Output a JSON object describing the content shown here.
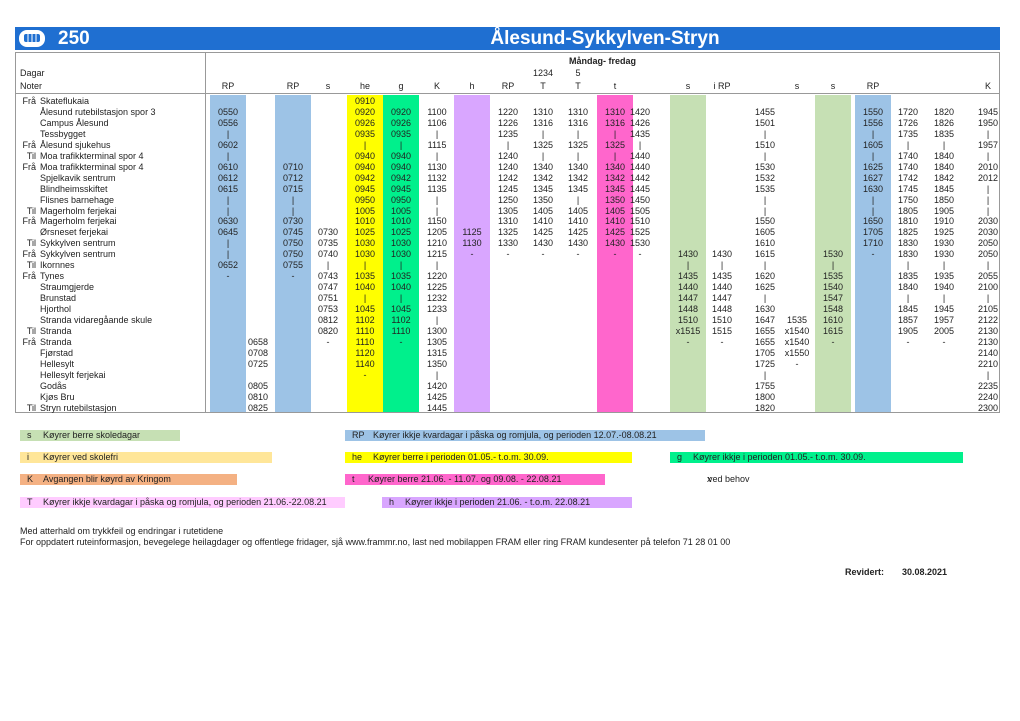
{
  "header": {
    "route": "250",
    "title": "Ålesund-Sykkylven-Stryn",
    "days": "Måndag- fredag"
  },
  "table": {
    "days_label": "Dagar",
    "days": [
      null,
      null,
      null,
      null,
      null,
      null,
      null,
      null,
      null,
      "1234",
      "5",
      null,
      null,
      null,
      null,
      null,
      null,
      null,
      null,
      null,
      null,
      null
    ],
    "notes_label": "Noter",
    "notes": [
      "RP",
      null,
      "RP",
      "s",
      "he",
      "g",
      "K",
      "h",
      "RP",
      "T",
      "T",
      "t",
      null,
      "s",
      "i RP",
      null,
      "s",
      "s",
      "RP",
      null,
      null,
      "K"
    ],
    "column_colors": [
      "#9dc3e6",
      null,
      "#9dc3e6",
      null,
      "#ffff00",
      "#00f08c",
      null,
      "#d9a6ff",
      null,
      null,
      null,
      "#ff66cc",
      null,
      "#c6e0b4",
      null,
      null,
      null,
      "#c6e0b4",
      "#9dc3e6",
      null,
      null,
      null
    ],
    "rows": [
      {
        "dir": "Frå",
        "stop": "Skateflukaia",
        "times": [
          null,
          null,
          null,
          null,
          "0910",
          null,
          null,
          null,
          null,
          null,
          null,
          null,
          null,
          null,
          null,
          null,
          null,
          null,
          null,
          null,
          null,
          null
        ]
      },
      {
        "stop": "Ålesund rutebilstasjon spor 3",
        "times": [
          "0550",
          null,
          null,
          null,
          "0920",
          "0920",
          "1100",
          null,
          "1220",
          "1310",
          "1310",
          "1310",
          "1420",
          null,
          null,
          "1455",
          null,
          null,
          "1550",
          "1720",
          "1820",
          "1945"
        ]
      },
      {
        "stop": "Campus Ålesund",
        "times": [
          "0556",
          null,
          null,
          null,
          "0926",
          "0926",
          "1106",
          null,
          "1226",
          "1316",
          "1316",
          "1316",
          "1426",
          null,
          null,
          "1501",
          null,
          null,
          "1556",
          "1726",
          "1826",
          "1950"
        ]
      },
      {
        "stop": "Tessbygget",
        "times": [
          "|",
          null,
          null,
          null,
          "0935",
          "0935",
          "|",
          null,
          "1235",
          "|",
          "|",
          "|",
          "1435",
          null,
          null,
          "|",
          null,
          null,
          "|",
          "1735",
          "1835",
          "|"
        ]
      },
      {
        "dir": "Frå",
        "stop": "Ålesund sjukehus",
        "times": [
          "0602",
          null,
          null,
          null,
          "|",
          "|",
          "1115",
          null,
          "|",
          "1325",
          "1325",
          "1325",
          "|",
          null,
          null,
          "1510",
          null,
          null,
          "1605",
          "|",
          "|",
          "1957"
        ]
      },
      {
        "dir": "Til",
        "stop": "Moa trafikkterminal spor 4",
        "times": [
          "|",
          null,
          null,
          null,
          "0940",
          "0940",
          "|",
          null,
          "1240",
          "|",
          "|",
          "|",
          "1440",
          null,
          null,
          "|",
          null,
          null,
          "|",
          "1740",
          "1840",
          "|"
        ]
      },
      {
        "dir": "Frå",
        "stop": "Moa trafikkterminal spor 4",
        "times": [
          "0610",
          null,
          "0710",
          null,
          "0940",
          "0940",
          "1130",
          null,
          "1240",
          "1340",
          "1340",
          "1340",
          "1440",
          null,
          null,
          "1530",
          null,
          null,
          "1625",
          "1740",
          "1840",
          "2010"
        ]
      },
      {
        "stop": "Spjelkavik sentrum",
        "times": [
          "0612",
          null,
          "0712",
          null,
          "0942",
          "0942",
          "1132",
          null,
          "1242",
          "1342",
          "1342",
          "1342",
          "1442",
          null,
          null,
          "1532",
          null,
          null,
          "1627",
          "1742",
          "1842",
          "2012"
        ]
      },
      {
        "stop": "Blindheimsskiftet",
        "times": [
          "0615",
          null,
          "0715",
          null,
          "0945",
          "0945",
          "1135",
          null,
          "1245",
          "1345",
          "1345",
          "1345",
          "1445",
          null,
          null,
          "1535",
          null,
          null,
          "1630",
          "1745",
          "1845",
          "|"
        ]
      },
      {
        "stop": "Flisnes barnehage",
        "times": [
          "|",
          null,
          "|",
          null,
          "0950",
          "0950",
          "|",
          null,
          "1250",
          "1350",
          "|",
          "1350",
          "1450",
          null,
          null,
          "|",
          null,
          null,
          "|",
          "1750",
          "1850",
          "|"
        ]
      },
      {
        "dir": "Til",
        "stop": "Magerholm ferjekai",
        "times": [
          "|",
          null,
          "|",
          null,
          "1005",
          "1005",
          "|",
          null,
          "1305",
          "1405",
          "1405",
          "1405",
          "1505",
          null,
          null,
          "|",
          null,
          null,
          "|",
          "1805",
          "1905",
          "|"
        ]
      },
      {
        "dir": "Frå",
        "stop": "Magerholm ferjekai",
        "times": [
          "0630",
          null,
          "0730",
          null,
          "1010",
          "1010",
          "1150",
          null,
          "1310",
          "1410",
          "1410",
          "1410",
          "1510",
          null,
          null,
          "1550",
          null,
          null,
          "1650",
          "1810",
          "1910",
          "2030"
        ]
      },
      {
        "stop": "Ørsneset ferjekai",
        "times": [
          "0645",
          null,
          "0745",
          "0730",
          "1025",
          "1025",
          "1205",
          "1125",
          "1325",
          "1425",
          "1425",
          "1425",
          "1525",
          null,
          null,
          "1605",
          null,
          null,
          "1705",
          "1825",
          "1925",
          "2030"
        ]
      },
      {
        "dir": "Til",
        "stop": "Sykkylven sentrum",
        "times": [
          "|",
          null,
          "0750",
          "0735",
          "1030",
          "1030",
          "1210",
          "1130",
          "1330",
          "1430",
          "1430",
          "1430",
          "1530",
          null,
          null,
          "1610",
          null,
          null,
          "1710",
          "1830",
          "1930",
          "2050"
        ]
      },
      {
        "dir": "Frå",
        "stop": "Sykkylven sentrum",
        "times": [
          "|",
          null,
          "0750",
          "0740",
          "1030",
          "1030",
          "1215",
          "-",
          "-",
          "-",
          "-",
          "-",
          "-",
          "1430",
          "1430",
          "1615",
          null,
          "1530",
          "-",
          "1830",
          "1930",
          "2050"
        ]
      },
      {
        "dir": "Til",
        "stop": "Ikornnes",
        "times": [
          "0652",
          null,
          "0755",
          "|",
          "|",
          "|",
          "|",
          null,
          null,
          null,
          null,
          null,
          null,
          "|",
          "|",
          "|",
          null,
          "|",
          null,
          "|",
          "|",
          "|"
        ]
      },
      {
        "dir": "Frå",
        "stop": "Tynes",
        "times": [
          "-",
          null,
          "-",
          "0743",
          "1035",
          "1035",
          "1220",
          null,
          null,
          null,
          null,
          null,
          null,
          "1435",
          "1435",
          "1620",
          null,
          "1535",
          null,
          "1835",
          "1935",
          "2055"
        ]
      },
      {
        "stop": "Straumgjerde",
        "times": [
          null,
          null,
          null,
          "0747",
          "1040",
          "1040",
          "1225",
          null,
          null,
          null,
          null,
          null,
          null,
          "1440",
          "1440",
          "1625",
          null,
          "1540",
          null,
          "1840",
          "1940",
          "2100"
        ]
      },
      {
        "stop": "Brunstad",
        "times": [
          null,
          null,
          null,
          "0751",
          "|",
          "|",
          "1232",
          null,
          null,
          null,
          null,
          null,
          null,
          "1447",
          "1447",
          "|",
          null,
          "1547",
          null,
          "|",
          "|",
          "|"
        ]
      },
      {
        "stop": "Hjorthol",
        "times": [
          null,
          null,
          null,
          "0753",
          "1045",
          "1045",
          "1233",
          null,
          null,
          null,
          null,
          null,
          null,
          "1448",
          "1448",
          "1630",
          null,
          "1548",
          null,
          "1845",
          "1945",
          "2105"
        ]
      },
      {
        "stop": "Stranda vidaregåande skule",
        "times": [
          null,
          null,
          null,
          "0812",
          "1102",
          "1102",
          "|",
          null,
          null,
          null,
          null,
          null,
          null,
          "1510",
          "1510",
          "1647",
          "1535",
          "1610",
          null,
          "1857",
          "1957",
          "2122"
        ]
      },
      {
        "dir": "Til",
        "stop": "Stranda",
        "times": [
          null,
          null,
          null,
          "0820",
          "1110",
          "1110",
          "1300",
          null,
          null,
          null,
          null,
          null,
          null,
          "x1515",
          "1515",
          "1655",
          "x1540",
          "1615",
          null,
          "1905",
          "2005",
          "2130"
        ]
      },
      {
        "dir": "Frå",
        "stop": "Stranda",
        "times": [
          null,
          "0658",
          null,
          "-",
          "1110",
          "-",
          "1305",
          null,
          null,
          null,
          null,
          null,
          null,
          "-",
          "-",
          "1655",
          "x1540",
          "-",
          null,
          "-",
          "-",
          "2130"
        ]
      },
      {
        "stop": "Fjørstad",
        "times": [
          null,
          "0708",
          null,
          null,
          "1120",
          null,
          "1315",
          null,
          null,
          null,
          null,
          null,
          null,
          null,
          null,
          "1705",
          "x1550",
          null,
          null,
          null,
          null,
          "2140"
        ]
      },
      {
        "stop": "Hellesylt",
        "times": [
          null,
          "0725",
          null,
          null,
          "1140",
          null,
          "1350",
          null,
          null,
          null,
          null,
          null,
          null,
          null,
          null,
          "1725",
          "-",
          null,
          null,
          null,
          null,
          "2210"
        ]
      },
      {
        "stop": "Hellesylt ferjekai",
        "times": [
          null,
          null,
          null,
          null,
          "-",
          null,
          "|",
          null,
          null,
          null,
          null,
          null,
          null,
          null,
          null,
          "|",
          null,
          null,
          null,
          null,
          null,
          "|"
        ]
      },
      {
        "stop": "Godås",
        "times": [
          null,
          "0805",
          null,
          null,
          null,
          null,
          "1420",
          null,
          null,
          null,
          null,
          null,
          null,
          null,
          null,
          "1755",
          null,
          null,
          null,
          null,
          null,
          "2235"
        ]
      },
      {
        "stop": "Kjøs Bru",
        "times": [
          null,
          "0810",
          null,
          null,
          null,
          null,
          "1425",
          null,
          null,
          null,
          null,
          null,
          null,
          null,
          null,
          "1800",
          null,
          null,
          null,
          null,
          null,
          "2240"
        ]
      },
      {
        "dir": "Til",
        "stop": "Stryn rutebilstasjon",
        "times": [
          null,
          "0825",
          null,
          null,
          null,
          null,
          "1445",
          null,
          null,
          null,
          null,
          null,
          null,
          null,
          null,
          "1820",
          null,
          null,
          null,
          null,
          null,
          "2300"
        ]
      }
    ]
  },
  "legend": [
    {
      "code": "s",
      "text": "Køyrer berre skoledagar",
      "color": "#c6e0b4"
    },
    {
      "code": "RP",
      "text": "Køyrer ikkje kvardagar i påska og romjula, og perioden 12.07.-08.08.21",
      "color": "#9dc3e6"
    },
    {
      "code": "i",
      "text": "Køyrer ved skolefri",
      "color": "#ffe699"
    },
    {
      "code": "he",
      "text": "Køyrer berre i perioden 01.05.- t.o.m. 30.09.",
      "color": "#ffff00"
    },
    {
      "code": "g",
      "text": "Køyrer ikkje i perioden 01.05.- t.o.m. 30.09.",
      "color": "#00f08c"
    },
    {
      "code": "K",
      "text": "Avgangen blir køyrd av Kringom",
      "color": "#f4b183"
    },
    {
      "code": "t",
      "text": "Køyrer berre 21.06. - 11.07. og 09.08. - 22.08.21",
      "color": "#ff66cc"
    },
    {
      "code": "x",
      "text": "ved behov",
      "color": null
    },
    {
      "code": "T",
      "text": "Køyrer ikkje kvardagar i påska og romjula, og perioden 21.06.-22.08.21",
      "color": "#ffccff"
    },
    {
      "code": "h",
      "text": "Køyrer ikkje i perioden 21.06. - t.o.m. 22.08.21",
      "color": "#d9a6ff"
    }
  ],
  "footer": {
    "lines": [
      "Med atterhald om trykkfeil og endringar i rutetidene",
      "For oppdatert ruteinformasjon, bevegelege heilagdager og offentlege fridager, sjå www.frammr.no, last ned mobilappen FRAM eller ring FRAM kundesenter på telefon 71 28 01 00"
    ],
    "revised_label": "Revidert:",
    "revised": "30.08.2021"
  }
}
